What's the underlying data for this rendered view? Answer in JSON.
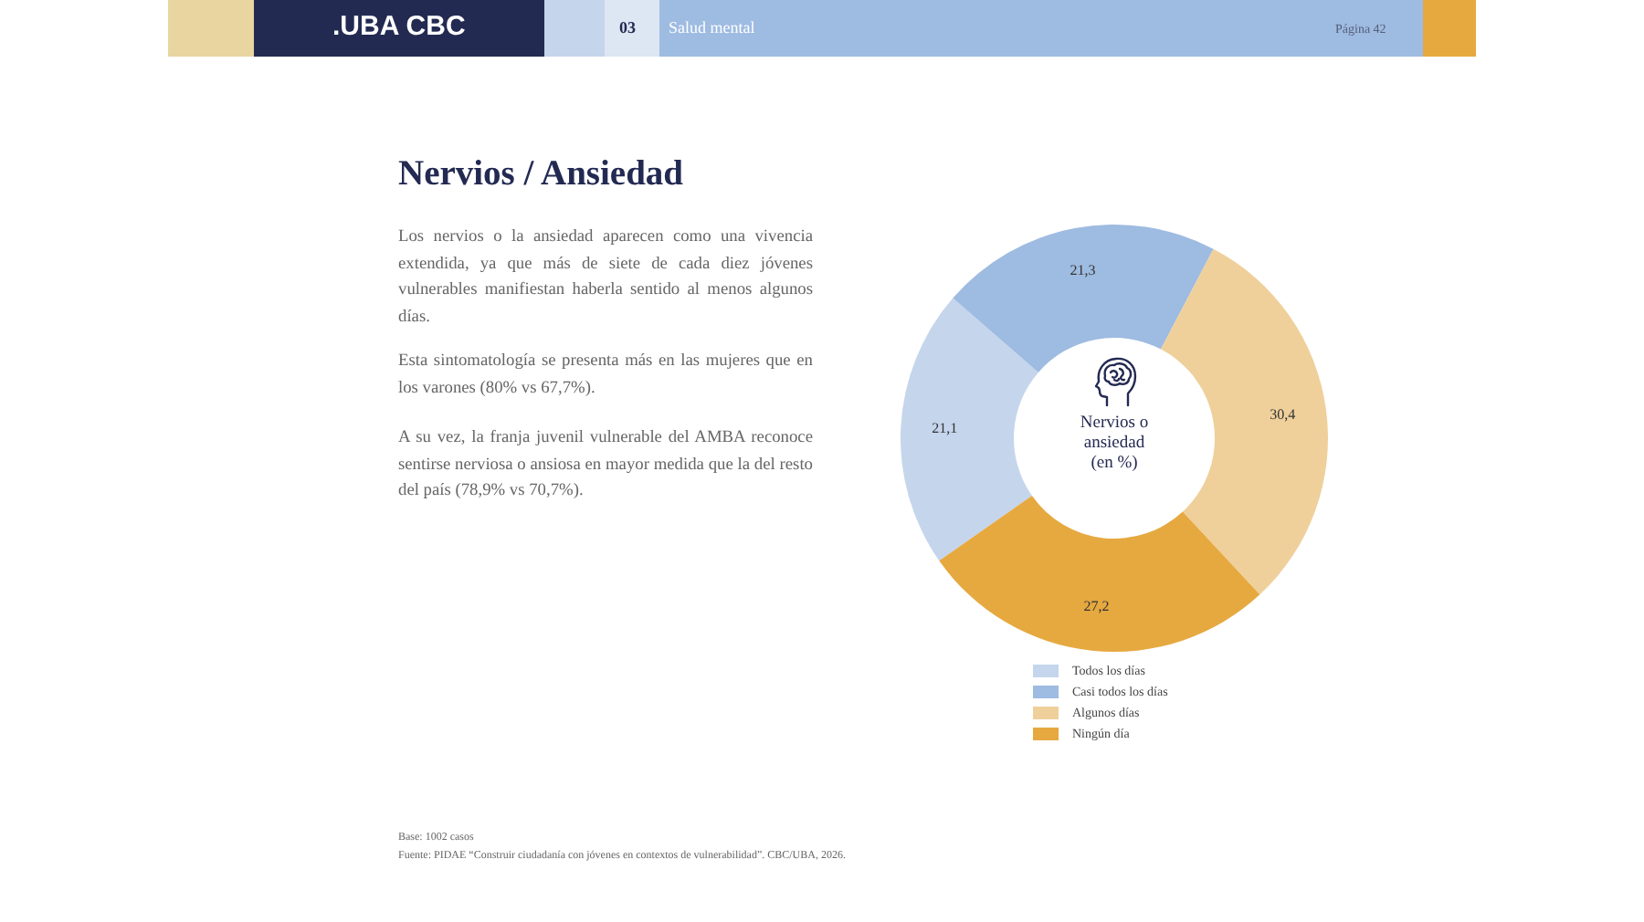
{
  "chart_data": {
    "type": "donut",
    "title": "Nervios / Ansiedad",
    "categories": [
      "Todos los días",
      "Casi todos los días",
      "Algunos días",
      "Ningún día"
    ],
    "values": [
      21.1,
      21.3,
      30.4,
      27.2
    ],
    "colors": [
      "#c5d5ec",
      "#9ebbe1",
      "#efd09b",
      "#e6a940"
    ],
    "value_labels": [
      "21,1",
      "21,3",
      "30,4",
      "27,2"
    ],
    "legend": "bottom",
    "annotations": [
      ".UBA CBC",
      "03",
      "Salud mental",
      "Página 42",
      "Los nervios o la ansiedad aparecen como una vivencia extendida, ya que más de siete de cada diez jóvenes vulnerables manifiestan haberla sentido al menos algunos días.",
      "Esta sintomatología se presenta más en las mujeres que en los varones (80% vs 67,7%).",
      "A su vez, la franja juvenil vulnerable del AMBA reconoce sentirse nerviosa o ansiosa en mayor medida que la del resto del país (78,9% vs 70,7%).",
      "Nervios o ansiedad (en %)",
      "Base: 1002 casos",
      "Fuente: PIDAE “Construir ciudadanía con jóvenes en contextos de vulnerabilidad”. CBC/UBA, 2026."
    ]
  }
}
